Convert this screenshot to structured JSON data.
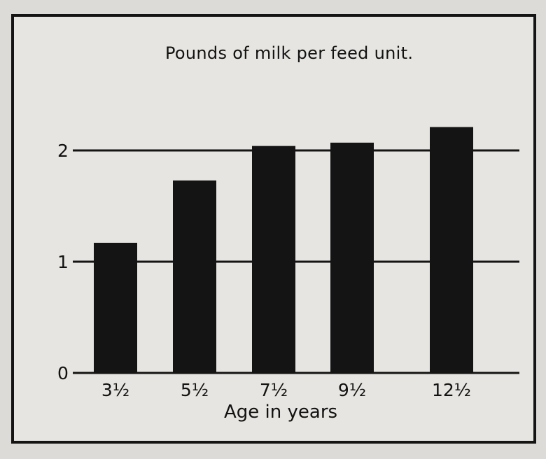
{
  "chart_data": {
    "type": "bar",
    "title": "Pounds of milk per feed unit.",
    "xlabel": "Age in years",
    "ylabel": "",
    "categories": [
      "3½",
      "5½",
      "7½",
      "9½",
      "12½"
    ],
    "values": [
      1.17,
      1.73,
      2.04,
      2.07,
      2.21
    ],
    "ylim": [
      0,
      2.3
    ],
    "yticks": [
      "0",
      "1",
      "2"
    ],
    "grid": true,
    "colors": {
      "bar": "#141414",
      "line": "#141414",
      "paper": "#e7e5e1"
    }
  }
}
